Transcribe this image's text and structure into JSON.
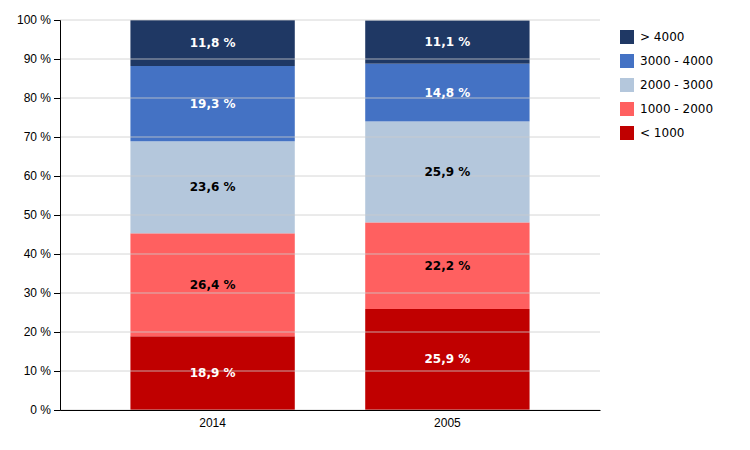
{
  "chart_data": {
    "type": "bar",
    "stacked": true,
    "categories": [
      "2014",
      "2005"
    ],
    "series": [
      {
        "name": "< 1000",
        "color": "#C00000",
        "values": [
          18.9,
          25.9
        ],
        "value_labels": [
          "18,9 %",
          "25,9 %"
        ]
      },
      {
        "name": "1000 - 2000",
        "color": "#FF6060",
        "values": [
          26.4,
          22.2
        ],
        "value_labels": [
          "26,4 %",
          "22,2 %"
        ]
      },
      {
        "name": "2000 - 3000",
        "color": "#B4C7DC",
        "values": [
          23.6,
          25.9
        ],
        "value_labels": [
          "23,6 %",
          "25,9 %"
        ]
      },
      {
        "name": "3000 - 4000",
        "color": "#4472C4",
        "values": [
          19.3,
          14.8
        ],
        "value_labels": [
          "19,3 %",
          "14,8 %"
        ]
      },
      {
        "name": "> 4000",
        "color": "#1F3864",
        "values": [
          11.8,
          11.1
        ],
        "value_labels": [
          "11,8 %",
          "11,1 %"
        ]
      }
    ],
    "ylim": [
      0,
      100
    ],
    "yticks": [
      {
        "value": 0,
        "label": "0 %"
      },
      {
        "value": 10,
        "label": "10 %"
      },
      {
        "value": 20,
        "label": "20 %"
      },
      {
        "value": 30,
        "label": "30 %"
      },
      {
        "value": 40,
        "label": "40 %"
      },
      {
        "value": 50,
        "label": "50 %"
      },
      {
        "value": 60,
        "label": "60 %"
      },
      {
        "value": 70,
        "label": "70 %"
      },
      {
        "value": 80,
        "label": "80 %"
      },
      {
        "value": 90,
        "label": "90 %"
      },
      {
        "value": 100,
        "label": "100 %"
      }
    ],
    "grid": true,
    "data_labels": true,
    "legend": "right"
  }
}
